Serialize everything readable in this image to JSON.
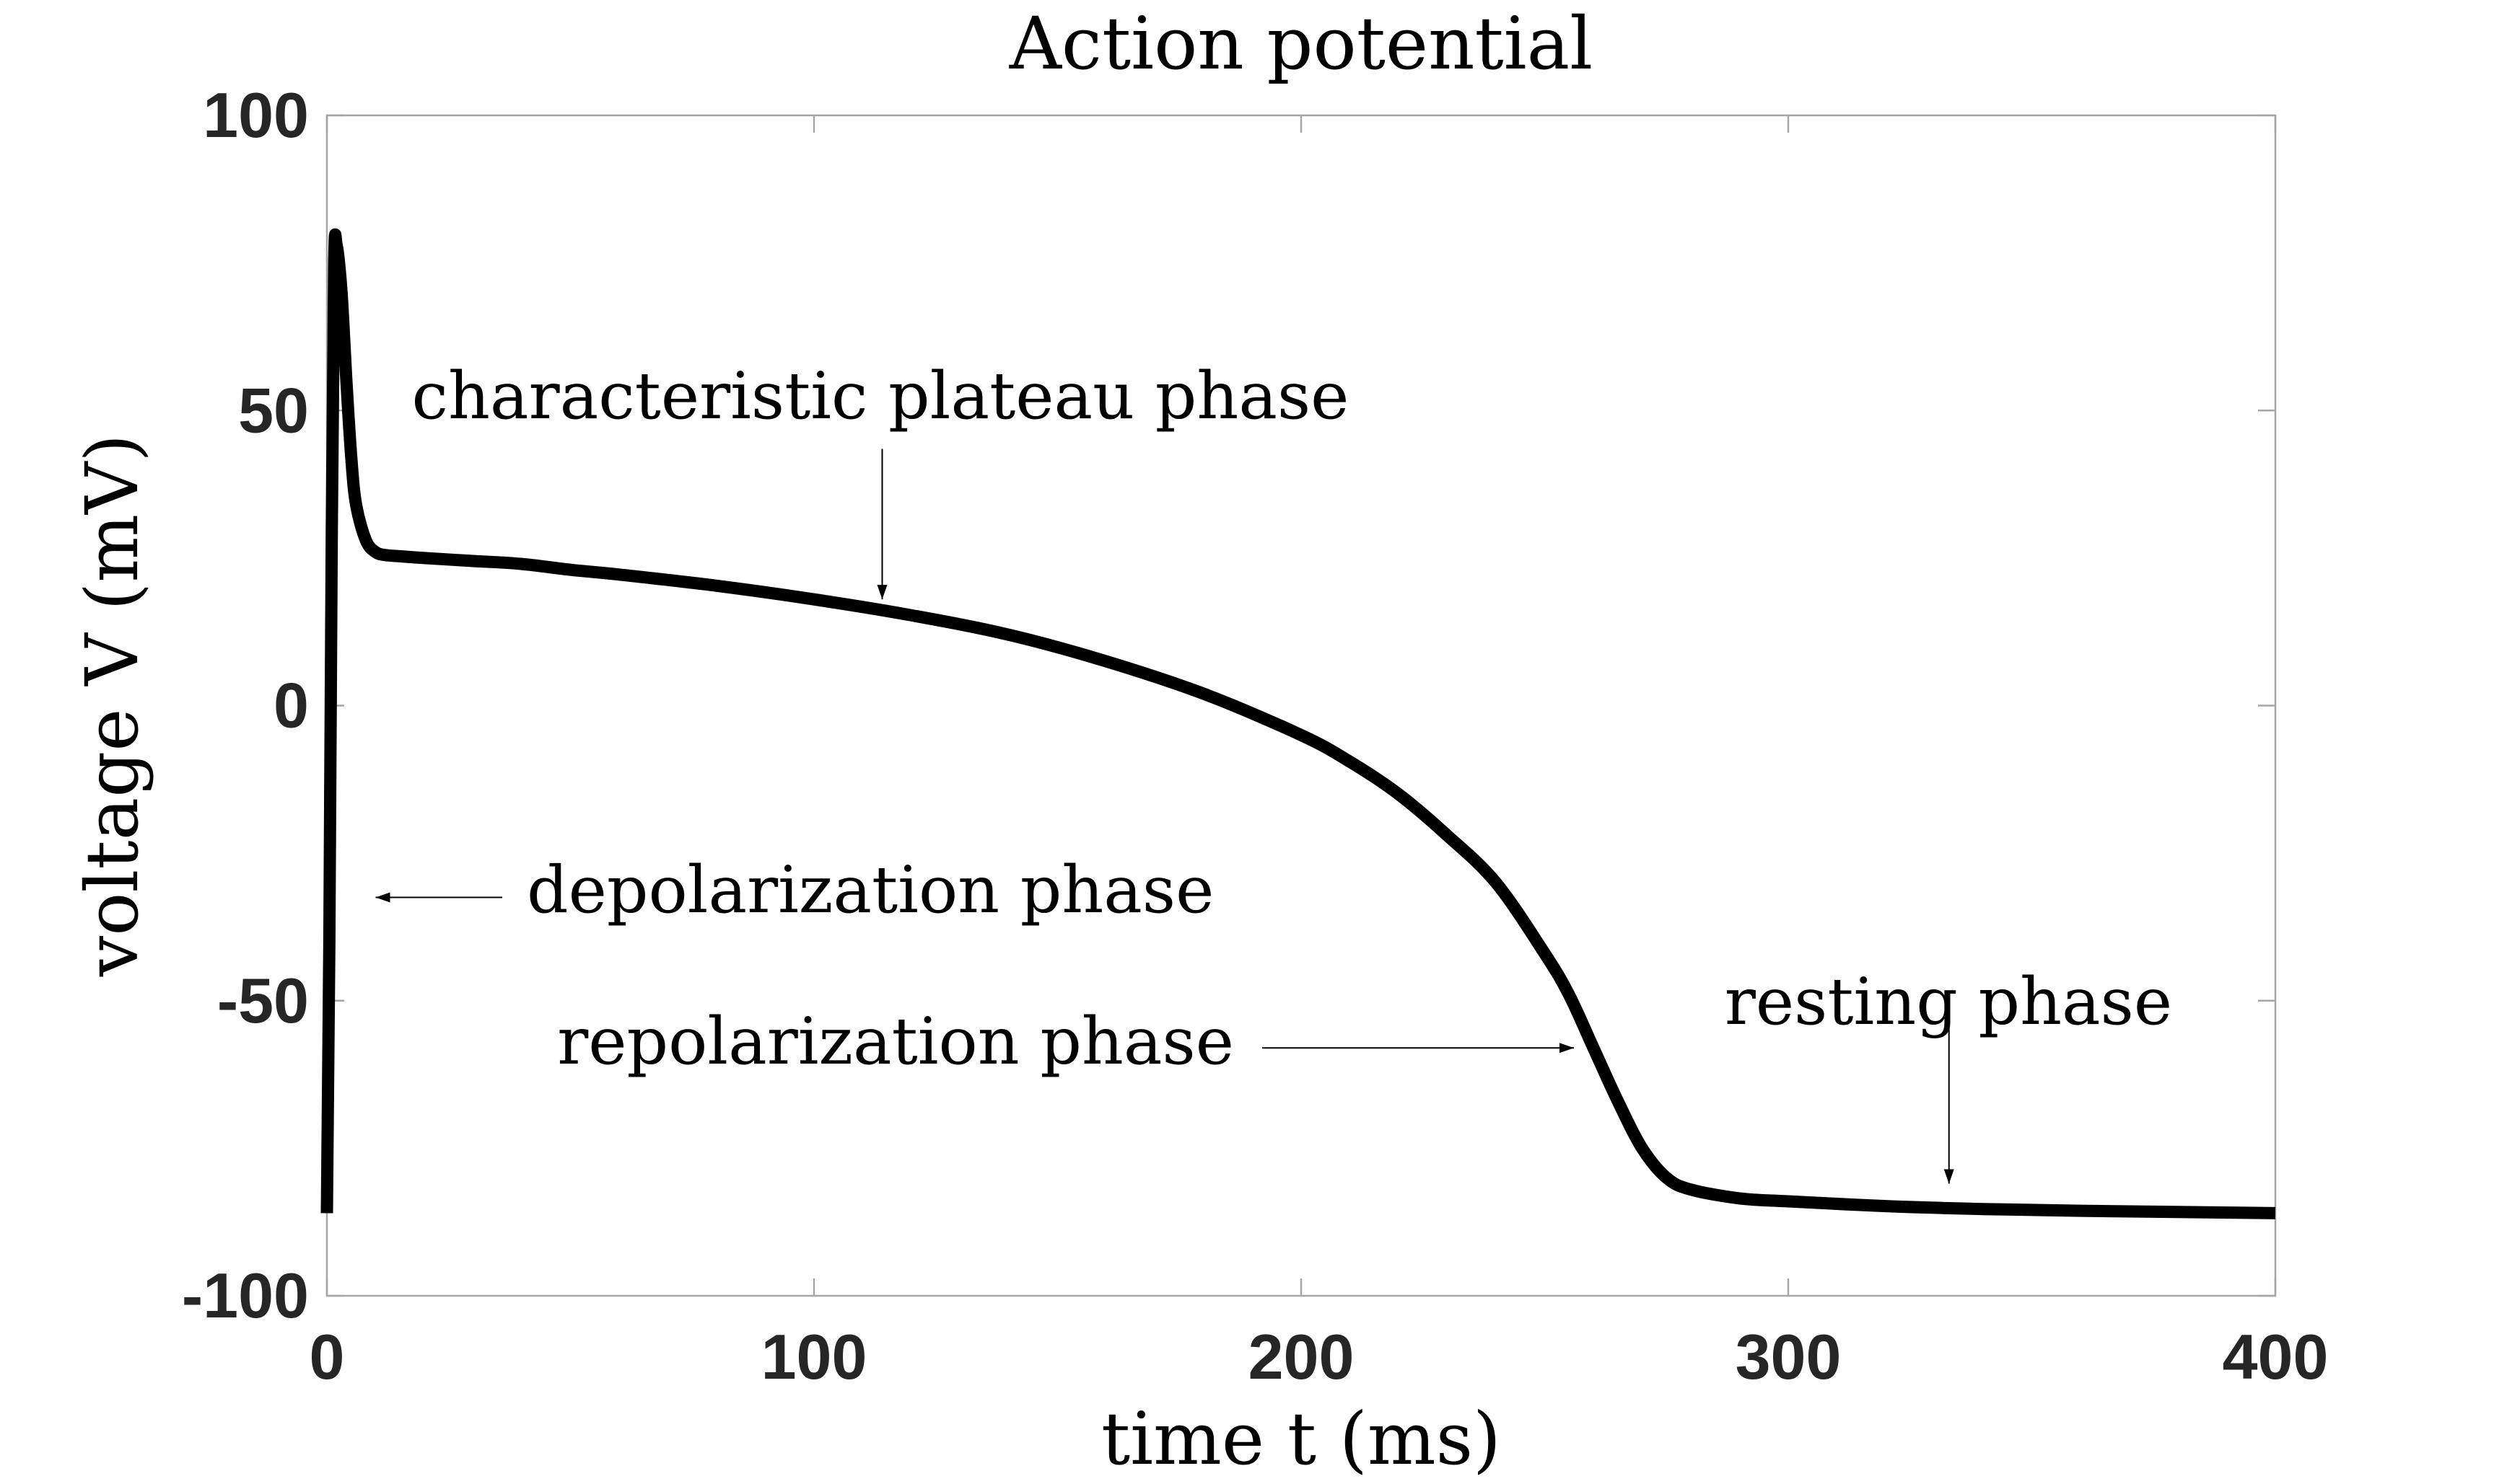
{
  "chart_data": {
    "type": "line",
    "title": "Action potential",
    "xlabel": "time t (ms)",
    "ylabel": "voltage V (mV)",
    "xlim": [
      0,
      400
    ],
    "ylim": [
      -100,
      100
    ],
    "xticks": [
      0,
      100,
      200,
      300,
      400
    ],
    "yticks": [
      -100,
      -50,
      0,
      50,
      100
    ],
    "xtick_labels": [
      "0",
      "100",
      "200",
      "300",
      "400"
    ],
    "ytick_labels": [
      "-100",
      "-50",
      "0",
      "50",
      "100"
    ],
    "grid": false,
    "line_color": "#000000",
    "series": [
      {
        "x": [
          0,
          0.5,
          1,
          1.5,
          2,
          3,
          4,
          5,
          6,
          8,
          10,
          12,
          15,
          20,
          30,
          40,
          50,
          60,
          80,
          100,
          120,
          140,
          160,
          180,
          200,
          210,
          220,
          230,
          240,
          250,
          255,
          260,
          265,
          270,
          275,
          280,
          290,
          300,
          320,
          340,
          360,
          380,
          400
        ],
        "y": [
          -86,
          -40,
          30,
          75,
          78,
          70,
          55,
          42,
          34,
          28,
          26,
          25.5,
          25.3,
          25,
          24.5,
          24,
          23,
          22.2,
          20.3,
          18,
          15.3,
          12,
          7.5,
          2,
          -5,
          -9.5,
          -15,
          -22,
          -30,
          -42,
          -49,
          -58,
          -67,
          -75,
          -80,
          -82,
          -83.5,
          -84,
          -84.8,
          -85.3,
          -85.6,
          -85.8,
          -86
        ]
      }
    ],
    "annotations": [
      {
        "text": "characteristic plateau phase",
        "arrow_from": [
          114,
          43.5
        ],
        "arrow_to": [
          114,
          18
        ]
      },
      {
        "text": "depolarization phase",
        "arrow_from": [
          36,
          -32.5
        ],
        "arrow_to": [
          10,
          -32.5
        ]
      },
      {
        "text": "repolarization phase",
        "arrow_from": [
          192,
          -58
        ],
        "arrow_to": [
          256,
          -58
        ]
      },
      {
        "text": "resting phase",
        "arrow_from": [
          333,
          -48.5
        ],
        "arrow_to": [
          333,
          -81
        ]
      }
    ]
  }
}
